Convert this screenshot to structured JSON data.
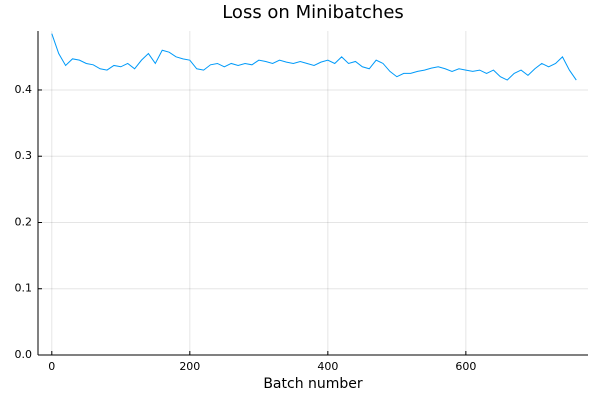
{
  "chart_data": {
    "type": "line",
    "title": "Loss on Minibatches",
    "x_label": "Batch number",
    "x": [
      0,
      10,
      20,
      30,
      40,
      50,
      60,
      70,
      80,
      90,
      100,
      110,
      120,
      130,
      140,
      150,
      160,
      170,
      180,
      190,
      200,
      210,
      220,
      230,
      240,
      250,
      260,
      270,
      280,
      290,
      300,
      310,
      320,
      330,
      340,
      350,
      360,
      370,
      380,
      390,
      400,
      410,
      420,
      430,
      440,
      450,
      460,
      470,
      480,
      490,
      500,
      510,
      520,
      530,
      540,
      550,
      560,
      570,
      580,
      590,
      600,
      610,
      620,
      630,
      640,
      650,
      660,
      670,
      680,
      690,
      700,
      710,
      720,
      730,
      740,
      750,
      760
    ],
    "series": [
      {
        "color": "#009af9",
        "values": [
          0.485,
          0.455,
          0.437,
          0.447,
          0.445,
          0.44,
          0.438,
          0.432,
          0.43,
          0.437,
          0.435,
          0.44,
          0.432,
          0.445,
          0.455,
          0.44,
          0.46,
          0.457,
          0.45,
          0.447,
          0.445,
          0.432,
          0.43,
          0.438,
          0.44,
          0.435,
          0.44,
          0.437,
          0.44,
          0.438,
          0.445,
          0.443,
          0.44,
          0.445,
          0.442,
          0.44,
          0.443,
          0.44,
          0.437,
          0.442,
          0.445,
          0.44,
          0.45,
          0.44,
          0.443,
          0.435,
          0.432,
          0.445,
          0.44,
          0.428,
          0.42,
          0.425,
          0.425,
          0.428,
          0.43,
          0.433,
          0.435,
          0.432,
          0.428,
          0.432,
          0.43,
          0.428,
          0.43,
          0.425,
          0.43,
          0.42,
          0.415,
          0.425,
          0.43,
          0.422,
          0.432,
          0.44,
          0.435,
          0.44,
          0.45,
          0.43,
          0.415
        ]
      }
    ],
    "xlim": [
      -20,
      777
    ],
    "xticks": [
      0,
      200,
      400,
      600
    ],
    "ylim": [
      0,
      0.489
    ],
    "yticks": [
      {
        "value": 0,
        "label": "0.0"
      },
      0.1,
      0.2,
      0.3,
      0.4
    ],
    "grid": true
  }
}
